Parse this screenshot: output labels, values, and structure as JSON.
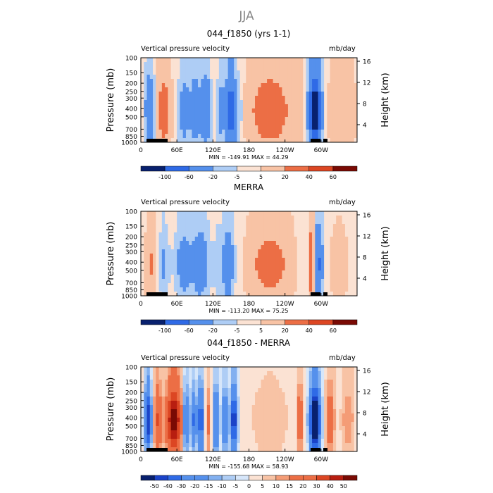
{
  "figure_title": "JJA",
  "chart_data": [
    {
      "type": "heatmap",
      "title": "044_f1850 (yrs 1-1)",
      "subtitle_left": "Vertical pressure velocity",
      "subtitle_right": "mb/day",
      "ylabel": "Pressure (mb)",
      "ylabel_right": "Height (km)",
      "x_tick_labels": [
        "0",
        "60E",
        "120E",
        "180",
        "120W",
        "60W"
      ],
      "y_tick_labels": [
        "100",
        "150",
        "200",
        "250",
        "300",
        "400",
        "500",
        "700",
        "850",
        "1000"
      ],
      "y_right_tick_labels": [
        "16",
        "12",
        "8",
        "4"
      ],
      "stats": "MIN = -149.91   MAX =  44.29",
      "colorbar_labels": [
        "-100",
        "-60",
        "-20",
        "-5",
        "5",
        "20",
        "40",
        "60"
      ],
      "features": [
        {
          "lon": 15,
          "half_width": 8,
          "value": -45
        },
        {
          "lon": 38,
          "half_width": 12,
          "value": 28
        },
        {
          "lon": 72,
          "half_width": 10,
          "value": -30
        },
        {
          "lon": 90,
          "half_width": 8,
          "value": -35
        },
        {
          "lon": 108,
          "half_width": 9,
          "value": -45
        },
        {
          "lon": 120,
          "half_width": 5,
          "value": 5
        },
        {
          "lon": 133,
          "half_width": 6,
          "value": -25
        },
        {
          "lon": 150,
          "half_width": 9,
          "value": -75
        },
        {
          "lon": 165,
          "half_width": 5,
          "value": -10
        },
        {
          "lon": 215,
          "half_width": 35,
          "value": 30
        },
        {
          "lon": 262,
          "half_width": 10,
          "value": 10
        },
        {
          "lon": 290,
          "half_width": 10,
          "value": -120
        },
        {
          "lon": 320,
          "half_width": 14,
          "value": 8
        },
        {
          "lon": 345,
          "half_width": 15,
          "value": 12
        }
      ]
    },
    {
      "type": "heatmap",
      "title": "MERRA",
      "subtitle_left": "Vertical pressure velocity",
      "subtitle_right": "mb/day",
      "ylabel": "Pressure (mb)",
      "ylabel_right": "Height (km)",
      "x_tick_labels": [
        "0",
        "60E",
        "120E",
        "180",
        "120W",
        "60W"
      ],
      "y_tick_labels": [
        "100",
        "150",
        "200",
        "250",
        "300",
        "400",
        "500",
        "700",
        "850",
        "1000"
      ],
      "y_right_tick_labels": [
        "16",
        "12",
        "8",
        "4"
      ],
      "stats": "MIN = -113.20   MAX =  75.25",
      "colorbar_labels": [
        "-100",
        "-60",
        "-20",
        "-5",
        "5",
        "20",
        "40",
        "60"
      ],
      "features": [
        {
          "lon": 18,
          "half_width": 10,
          "value": 18
        },
        {
          "lon": 38,
          "half_width": 8,
          "value": -20
        },
        {
          "lon": 72,
          "half_width": 14,
          "value": -30
        },
        {
          "lon": 100,
          "half_width": 14,
          "value": -35
        },
        {
          "lon": 128,
          "half_width": 6,
          "value": -12
        },
        {
          "lon": 145,
          "half_width": 10,
          "value": -40
        },
        {
          "lon": 215,
          "half_width": 35,
          "value": 25
        },
        {
          "lon": 285,
          "half_width": 4,
          "value": 50
        },
        {
          "lon": 295,
          "half_width": 8,
          "value": -55
        },
        {
          "lon": 330,
          "half_width": 20,
          "value": 8
        }
      ]
    },
    {
      "type": "heatmap",
      "title": "044_f1850 - MERRA",
      "subtitle_left": "Vertical pressure velocity",
      "subtitle_right": "mb/day",
      "ylabel": "Pressure (mb)",
      "ylabel_right": "Height (km)",
      "x_tick_labels": [
        "0",
        "60E",
        "120E",
        "180",
        "120W",
        "60W"
      ],
      "y_tick_labels": [
        "100",
        "150",
        "200",
        "250",
        "300",
        "400",
        "500",
        "700",
        "850",
        "1000"
      ],
      "y_right_tick_labels": [
        "16",
        "12",
        "8",
        "4"
      ],
      "stats": "MIN = -155.68   MAX =  58.93",
      "colorbar_labels": [
        "-50",
        "-40",
        "-30",
        "-20",
        "-15",
        "-10",
        "-5",
        "0",
        "5",
        "10",
        "15",
        "20",
        "30",
        "40",
        "50"
      ],
      "features": [
        {
          "lon": 12,
          "half_width": 6,
          "value": -40
        },
        {
          "lon": 28,
          "half_width": 7,
          "value": 25
        },
        {
          "lon": 55,
          "half_width": 13,
          "value": 45
        },
        {
          "lon": 75,
          "half_width": 5,
          "value": -30
        },
        {
          "lon": 88,
          "half_width": 5,
          "value": -25
        },
        {
          "lon": 100,
          "half_width": 5,
          "value": -35
        },
        {
          "lon": 112,
          "half_width": 5,
          "value": 15
        },
        {
          "lon": 125,
          "half_width": 5,
          "value": -30
        },
        {
          "lon": 140,
          "half_width": 5,
          "value": -25
        },
        {
          "lon": 155,
          "half_width": 6,
          "value": -40
        },
        {
          "lon": 215,
          "half_width": 35,
          "value": 8
        },
        {
          "lon": 265,
          "half_width": 5,
          "value": 20
        },
        {
          "lon": 290,
          "half_width": 9,
          "value": -60
        },
        {
          "lon": 315,
          "half_width": 8,
          "value": 20
        },
        {
          "lon": 345,
          "half_width": 12,
          "value": 12
        }
      ]
    }
  ],
  "colors": {
    "palette": [
      "#08206e",
      "#1a43c8",
      "#2f6ae6",
      "#5590ec",
      "#82b0f0",
      "#aecdf5",
      "#d6e6fa",
      "#fbe2d3",
      "#f8c3a5",
      "#f49c76",
      "#ec6e45",
      "#dc4623",
      "#b81e10",
      "#7a0a04"
    ]
  }
}
